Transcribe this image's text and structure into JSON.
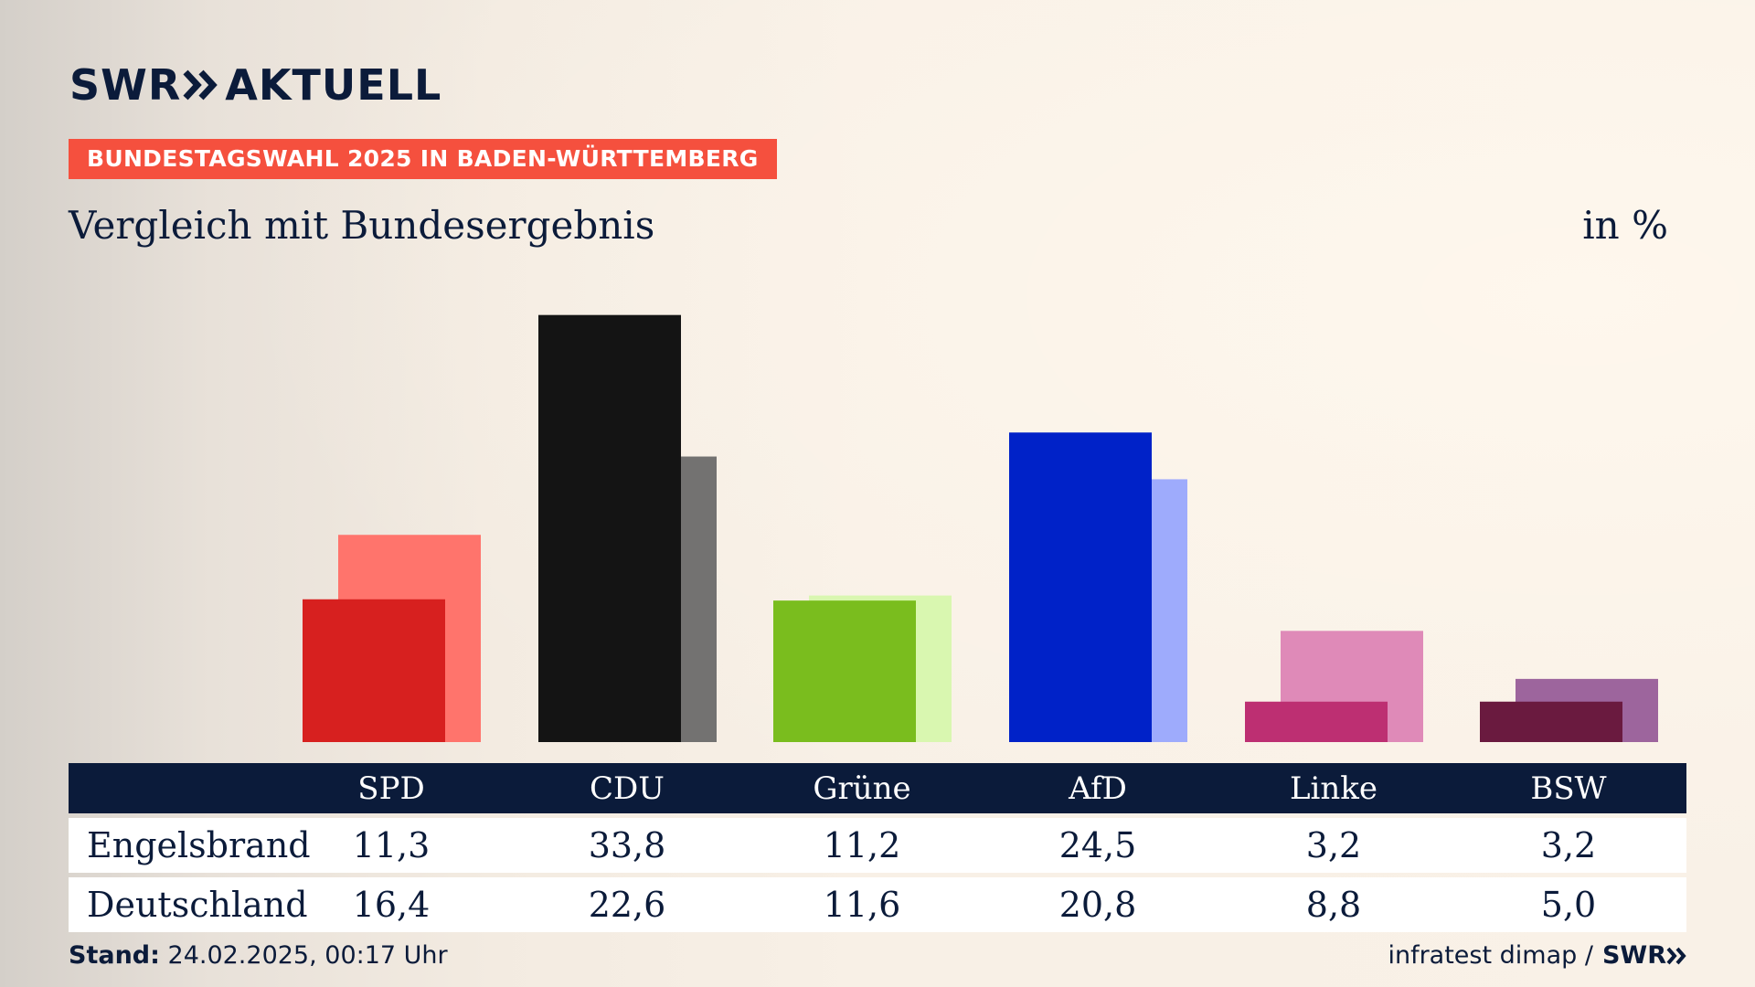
{
  "header": {
    "logo_text_left": "SWR",
    "logo_text_right": "AKTUELL",
    "banner": "BUNDESTAGSWAHL 2025 IN BADEN-WÜRTTEMBERG",
    "subtitle": "Vergleich mit Bundesergebnis",
    "unit": "in %"
  },
  "chart_data": {
    "type": "bar",
    "categories": [
      "SPD",
      "CDU",
      "Grüne",
      "AfD",
      "Linke",
      "BSW"
    ],
    "series": [
      {
        "name": "Engelsbrand",
        "values": [
          11.3,
          33.8,
          11.2,
          24.5,
          3.2,
          3.2
        ],
        "colors": [
          "#d7201f",
          "#141414",
          "#7abd1e",
          "#0022c8",
          "#bd2f72",
          "#6a1a3f"
        ]
      },
      {
        "name": "Deutschland",
        "values": [
          16.4,
          22.6,
          11.6,
          20.8,
          8.8,
          5.0
        ],
        "colors": [
          "#ff746c",
          "#737271",
          "#d9f7b0",
          "#9eabfc",
          "#df8ab8",
          "#9d659d"
        ]
      }
    ],
    "ylim": [
      0,
      34.5
    ]
  },
  "table": {
    "headers": [
      "SPD",
      "CDU",
      "Grüne",
      "AfD",
      "Linke",
      "BSW"
    ],
    "rows": [
      {
        "label": "Engelsbrand",
        "values": [
          "11,3",
          "33,8",
          "11,2",
          "24,5",
          "3,2",
          "3,2"
        ]
      },
      {
        "label": "Deutschland",
        "values": [
          "16,4",
          "22,6",
          "11,6",
          "20,8",
          "8,8",
          "5,0"
        ]
      }
    ]
  },
  "footer": {
    "stand_label": "Stand:",
    "stand_value": "24.02.2025, 00:17 Uhr",
    "source": "infratest dimap /",
    "source_logo": "SWR"
  },
  "colors": {
    "navy": "#0b1b3a",
    "banner_red": "#f5503e"
  }
}
